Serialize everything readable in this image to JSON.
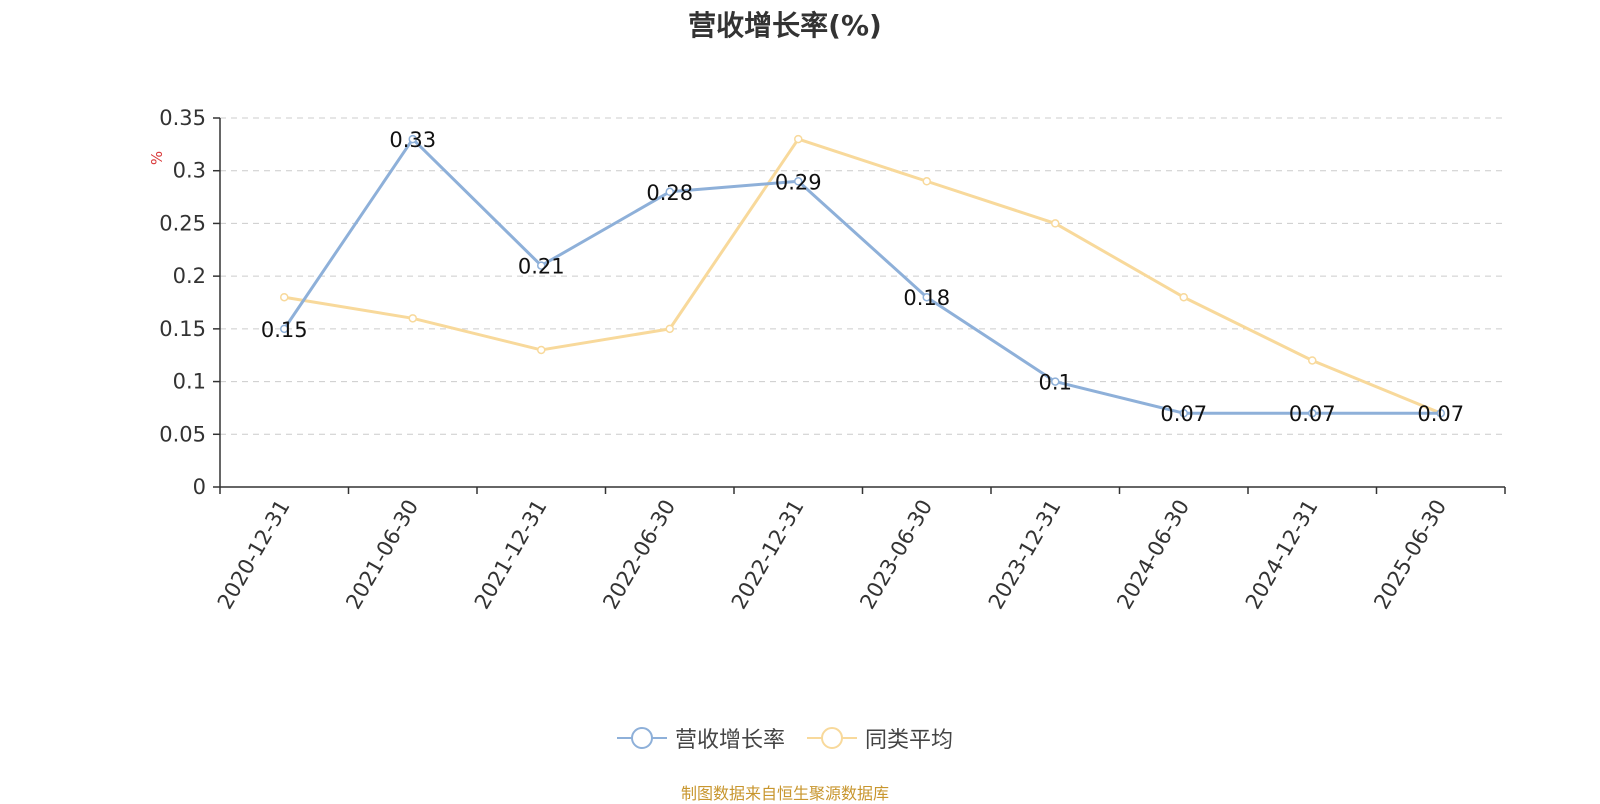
{
  "title": "营收增长率(%)",
  "source": "制图数据来自恒生聚源数据库",
  "colors": {
    "series1": "#8eb0d9",
    "series2": "#f8d99b",
    "grid": "#cccccc",
    "axis": "#333333",
    "unit": "#d9393a"
  },
  "chart_data": {
    "type": "line",
    "title": "营收增长率(%)",
    "ylabel": "%",
    "xlabel": "",
    "categories": [
      "2020-12-31",
      "2021-06-30",
      "2021-12-31",
      "2022-06-30",
      "2022-12-31",
      "2023-06-30",
      "2023-12-31",
      "2024-06-30",
      "2024-12-31",
      "2025-06-30"
    ],
    "yticks": [
      "0",
      "0.05",
      "0.1",
      "0.15",
      "0.2",
      "0.25",
      "0.3",
      "0.35"
    ],
    "ylim": [
      0,
      0.35
    ],
    "grid": true,
    "legend_position": "bottom",
    "series": [
      {
        "name": "营收增长率",
        "values": [
          0.15,
          0.33,
          0.21,
          0.28,
          0.29,
          0.18,
          0.1,
          0.07,
          0.07,
          0.07
        ],
        "labels": [
          "0.15",
          "0.33",
          "0.21",
          "0.28",
          "0.29",
          "0.18",
          "0.1",
          "0.07",
          "0.07",
          "0.07"
        ]
      },
      {
        "name": "同类平均",
        "values": [
          0.18,
          0.16,
          0.13,
          0.15,
          0.33,
          0.29,
          0.25,
          0.18,
          0.12,
          0.07
        ]
      }
    ]
  }
}
